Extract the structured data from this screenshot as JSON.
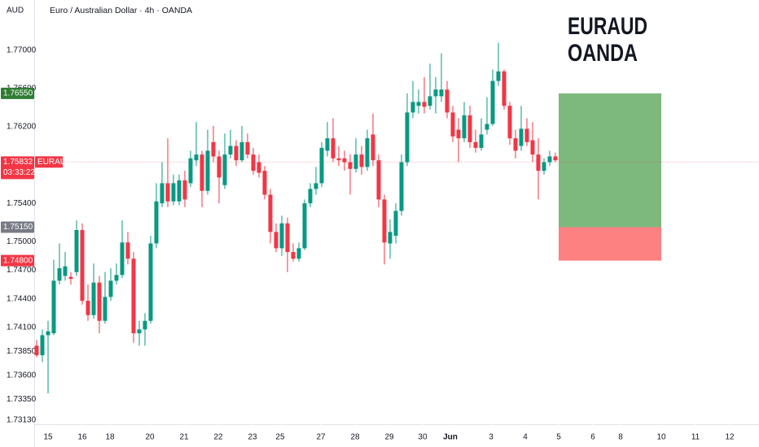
{
  "chart_data": {
    "type": "candlestick",
    "title": "Euro / Australian Dollar · 4h · OANDA",
    "currency": "AUD",
    "annotation": [
      "EURAUD",
      "OANDA"
    ],
    "up_color": "#089981",
    "down_color": "#f23645",
    "grid": false,
    "ylim": [
      1.73088,
      1.77527
    ],
    "yticks": [
      {
        "value": 1.77,
        "label": "1.77000"
      },
      {
        "value": 1.766,
        "label": "1.76600"
      },
      {
        "value": 1.762,
        "label": "1.76200"
      },
      {
        "value": 1.754,
        "label": "1.75400"
      },
      {
        "value": 1.75,
        "label": "1.75000"
      },
      {
        "value": 1.747,
        "label": "1.74700"
      },
      {
        "value": 1.744,
        "label": "1.74400"
      },
      {
        "value": 1.741,
        "label": "1.74100"
      },
      {
        "value": 1.7385,
        "label": "1.73850"
      },
      {
        "value": 1.736,
        "label": "1.73600"
      },
      {
        "value": 1.7335,
        "label": "1.73350"
      },
      {
        "value": 1.7313,
        "label": "1.73130"
      }
    ],
    "xlim": [
      -0.43,
      126.71
    ],
    "xticks": [
      {
        "value": 2,
        "label": "15"
      },
      {
        "value": 8,
        "label": "16"
      },
      {
        "value": 12.86,
        "label": "18"
      },
      {
        "value": 19.86,
        "label": "20"
      },
      {
        "value": 25.86,
        "label": "21"
      },
      {
        "value": 31.86,
        "label": "22"
      },
      {
        "value": 37.86,
        "label": "23"
      },
      {
        "value": 42.71,
        "label": "25"
      },
      {
        "value": 49.86,
        "label": "27"
      },
      {
        "value": 55.86,
        "label": "28"
      },
      {
        "value": 61.86,
        "label": "29"
      },
      {
        "value": 67.71,
        "label": "30"
      },
      {
        "value": 72.57,
        "label": "Jun",
        "bold": true
      },
      {
        "value": 79.71,
        "label": "3"
      },
      {
        "value": 85.71,
        "label": "4"
      },
      {
        "value": 91.57,
        "label": "5"
      },
      {
        "value": 97.57,
        "label": "6"
      },
      {
        "value": 102.43,
        "label": "8"
      },
      {
        "value": 109.57,
        "label": "10"
      },
      {
        "value": 115.57,
        "label": "11"
      },
      {
        "value": 121.57,
        "label": "12"
      }
    ],
    "candles": [
      [
        1.7391,
        1.7397,
        1.7379,
        1.7381
      ],
      [
        1.7381,
        1.7408,
        1.7374,
        1.7402
      ],
      [
        1.7402,
        1.7417,
        1.7341,
        1.7406
      ],
      [
        1.7404,
        1.7481,
        1.7402,
        1.7459
      ],
      [
        1.7459,
        1.7498,
        1.7455,
        1.7472
      ],
      [
        1.7464,
        1.7489,
        1.7459,
        1.7474
      ],
      [
        1.7463,
        1.7468,
        1.7455,
        1.7461
      ],
      [
        1.7468,
        1.7522,
        1.7464,
        1.7512
      ],
      [
        1.7512,
        1.7519,
        1.7434,
        1.7438
      ],
      [
        1.7438,
        1.7455,
        1.7417,
        1.7423
      ],
      [
        1.7423,
        1.7477,
        1.7419,
        1.7457
      ],
      [
        1.7457,
        1.7464,
        1.7404,
        1.7417
      ],
      [
        1.7417,
        1.7468,
        1.7414,
        1.7442
      ],
      [
        1.7442,
        1.7472,
        1.7438,
        1.7459
      ],
      [
        1.7459,
        1.7477,
        1.7455,
        1.7465
      ],
      [
        1.7465,
        1.7522,
        1.7462,
        1.7499
      ],
      [
        1.7499,
        1.751,
        1.7476,
        1.7482
      ],
      [
        1.7482,
        1.7489,
        1.7394,
        1.7404
      ],
      [
        1.7404,
        1.7417,
        1.7391,
        1.7408
      ],
      [
        1.7408,
        1.7425,
        1.7391,
        1.7417
      ],
      [
        1.7417,
        1.7506,
        1.7414,
        1.7498
      ],
      [
        1.7498,
        1.7561,
        1.7493,
        1.7542
      ],
      [
        1.754,
        1.7583,
        1.7536,
        1.7561
      ],
      [
        1.7561,
        1.7608,
        1.7536,
        1.7542
      ],
      [
        1.7542,
        1.757,
        1.7538,
        1.7561
      ],
      [
        1.7542,
        1.757,
        1.7538,
        1.7564
      ],
      [
        1.7564,
        1.7574,
        1.7536,
        1.7544
      ],
      [
        1.7561,
        1.7595,
        1.7557,
        1.7587
      ],
      [
        1.7585,
        1.7625,
        1.7579,
        1.7591
      ],
      [
        1.7591,
        1.7595,
        1.7536,
        1.7553
      ],
      [
        1.7553,
        1.7617,
        1.7549,
        1.7595
      ],
      [
        1.7604,
        1.7621,
        1.7583,
        1.7589
      ],
      [
        1.7589,
        1.7595,
        1.754,
        1.7567
      ],
      [
        1.7559,
        1.7613,
        1.7555,
        1.7591
      ],
      [
        1.7591,
        1.7617,
        1.7587,
        1.76
      ],
      [
        1.76,
        1.7606,
        1.7579,
        1.7585
      ],
      [
        1.7585,
        1.7621,
        1.7583,
        1.7604
      ],
      [
        1.7604,
        1.7613,
        1.7587,
        1.7591
      ],
      [
        1.7591,
        1.7598,
        1.757,
        1.7574
      ],
      [
        1.7583,
        1.7591,
        1.7567,
        1.7572
      ],
      [
        1.7574,
        1.7579,
        1.7544,
        1.7549
      ],
      [
        1.7549,
        1.7555,
        1.7498,
        1.751
      ],
      [
        1.751,
        1.7519,
        1.7489,
        1.7493
      ],
      [
        1.7493,
        1.7527,
        1.7485,
        1.7519
      ],
      [
        1.7519,
        1.7525,
        1.7468,
        1.7489
      ],
      [
        1.7489,
        1.7498,
        1.7479,
        1.7482
      ],
      [
        1.7482,
        1.7499,
        1.7479,
        1.7493
      ],
      [
        1.7493,
        1.7544,
        1.7491,
        1.754
      ],
      [
        1.754,
        1.7561,
        1.7536,
        1.7555
      ],
      [
        1.7555,
        1.7578,
        1.7549,
        1.7561
      ],
      [
        1.7561,
        1.7604,
        1.7557,
        1.7598
      ],
      [
        1.7595,
        1.7625,
        1.7589,
        1.7608
      ],
      [
        1.7608,
        1.7629,
        1.7583,
        1.7587
      ],
      [
        1.7587,
        1.76,
        1.7579,
        1.7585
      ],
      [
        1.7587,
        1.7595,
        1.7574,
        1.7583
      ],
      [
        1.7583,
        1.7591,
        1.7549,
        1.7576
      ],
      [
        1.7576,
        1.7608,
        1.7572,
        1.7591
      ],
      [
        1.7591,
        1.76,
        1.757,
        1.7578
      ],
      [
        1.7578,
        1.7617,
        1.7574,
        1.7608
      ],
      [
        1.7612,
        1.7634,
        1.7579,
        1.7585
      ],
      [
        1.7585,
        1.7591,
        1.7536,
        1.7544
      ],
      [
        1.7544,
        1.7549,
        1.7476,
        1.7499
      ],
      [
        1.7498,
        1.7523,
        1.7482,
        1.751
      ],
      [
        1.7506,
        1.754,
        1.7498,
        1.7532
      ],
      [
        1.7532,
        1.7591,
        1.7527,
        1.7583
      ],
      [
        1.7583,
        1.7655,
        1.7579,
        1.7635
      ],
      [
        1.7635,
        1.7668,
        1.7629,
        1.7646
      ],
      [
        1.7642,
        1.7659,
        1.7634,
        1.7646
      ],
      [
        1.7646,
        1.7672,
        1.7634,
        1.7641
      ],
      [
        1.7642,
        1.7686,
        1.7638,
        1.7652
      ],
      [
        1.7652,
        1.7672,
        1.7634,
        1.7659
      ],
      [
        1.7652,
        1.7697,
        1.7646,
        1.7659
      ],
      [
        1.7659,
        1.7668,
        1.7629,
        1.7635
      ],
      [
        1.7635,
        1.7642,
        1.7604,
        1.761
      ],
      [
        1.7617,
        1.7629,
        1.7583,
        1.7608
      ],
      [
        1.7608,
        1.7646,
        1.7604,
        1.7632
      ],
      [
        1.7632,
        1.7642,
        1.7598,
        1.7604
      ],
      [
        1.7604,
        1.7617,
        1.7593,
        1.7598
      ],
      [
        1.7598,
        1.7629,
        1.7595,
        1.7612
      ],
      [
        1.7617,
        1.7651,
        1.7612,
        1.7623
      ],
      [
        1.7623,
        1.768,
        1.7621,
        1.7668
      ],
      [
        1.7668,
        1.7708,
        1.7663,
        1.7678
      ],
      [
        1.7678,
        1.768,
        1.7638,
        1.7642
      ],
      [
        1.7642,
        1.7646,
        1.7601,
        1.7608
      ],
      [
        1.7608,
        1.7617,
        1.7587,
        1.7595
      ],
      [
        1.76,
        1.7642,
        1.7595,
        1.7618
      ],
      [
        1.7618,
        1.7629,
        1.76,
        1.7604
      ],
      [
        1.7606,
        1.7625,
        1.7583,
        1.7591
      ],
      [
        1.7591,
        1.7608,
        1.7544,
        1.7574
      ],
      [
        1.7574,
        1.7587,
        1.757,
        1.7583
      ],
      [
        1.7583,
        1.7595,
        1.7579,
        1.7589
      ],
      [
        1.7589,
        1.7593,
        1.7583,
        1.7585
      ]
    ],
    "markers": [
      {
        "value": 1.7655,
        "label": "1.76550",
        "color": "#2e7d32"
      },
      {
        "value": 1.75832,
        "label": "1.75832",
        "color": "#f23645",
        "symbol": "EURAUD",
        "countdown": "03:33:22"
      },
      {
        "value": 1.7515,
        "label": "1.75150",
        "color": "#787b86"
      },
      {
        "value": 1.748,
        "label": "1.74800",
        "color": "#f23645"
      }
    ],
    "position": {
      "profit_color": "#7db87d",
      "loss_color": "#fd8181"
    }
  }
}
